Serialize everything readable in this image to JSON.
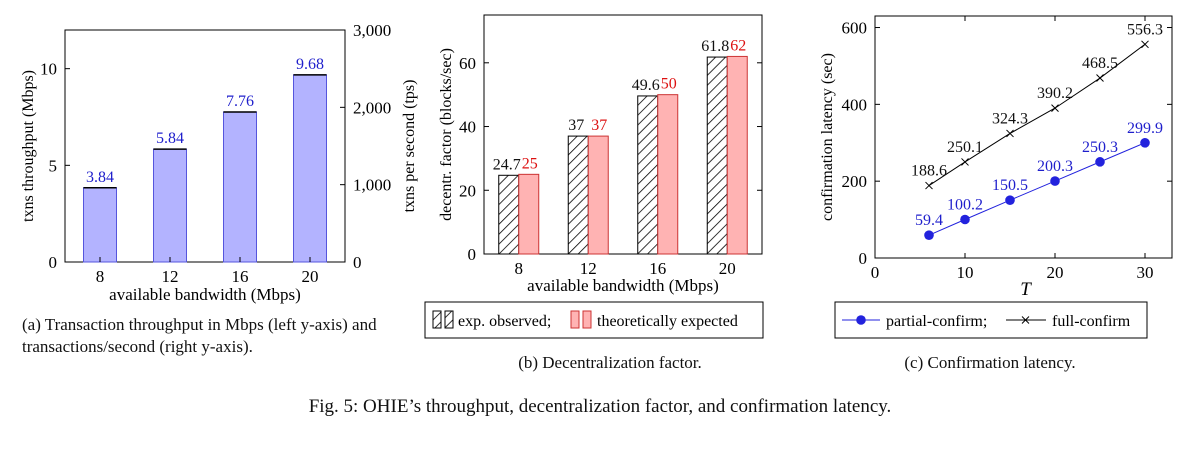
{
  "figure_caption": "Fig. 5: OHIE’s throughput, decentralization factor, and confirmation latency.",
  "colors": {
    "bar_blue_fill": "#b3b3ff",
    "bar_blue_stroke": "#5555dd",
    "label_blue": "#1f1fcc",
    "bar_red_fill": "#ffb3b3",
    "bar_red_stroke": "#cc3333",
    "label_red": "#dd1111",
    "axis": "#000000",
    "line_blue": "#2222dd",
    "line_black": "#000000"
  },
  "chart_data": [
    {
      "id": "a",
      "type": "bar",
      "caption": "(a) Transaction throughput in Mbps (left y-axis) and transactions/second (right y-axis).",
      "categories": [
        "8",
        "12",
        "16",
        "20"
      ],
      "values": [
        3.84,
        5.84,
        7.76,
        9.68
      ],
      "value_labels": [
        "3.84",
        "5.84",
        "7.76",
        "9.68"
      ],
      "xlabel": "available bandwidth (Mbps)",
      "ylabel": "txns throughput (Mbps)",
      "ylim": [
        0,
        12
      ],
      "yticks": [
        0,
        5,
        10
      ],
      "ytick_labels": [
        "0",
        "5",
        "10"
      ],
      "ylabel_right": "txns per second (tps)",
      "ylim_right": [
        0,
        3000
      ],
      "yticks_right": [
        0,
        1000,
        2000,
        3000
      ],
      "ytick_labels_right": [
        "0",
        "1,000",
        "2,000",
        "3,000"
      ]
    },
    {
      "id": "b",
      "type": "bar",
      "caption": "(b) Decentralization factor.",
      "categories": [
        "8",
        "12",
        "16",
        "20"
      ],
      "series": [
        {
          "name": "exp. observed;",
          "values": [
            24.7,
            37,
            49.6,
            61.8
          ],
          "value_labels": [
            "24.7",
            "37",
            "49.6",
            "61.8"
          ],
          "style": "hatched"
        },
        {
          "name": "theoretically expected",
          "values": [
            25,
            37,
            50,
            62
          ],
          "value_labels": [
            "25",
            "37",
            "50",
            "62"
          ],
          "style": "red"
        }
      ],
      "xlabel": "available bandwidth (Mbps)",
      "ylabel": "decentr. factor (blocks/sec)",
      "ylim": [
        0,
        75
      ],
      "yticks": [
        0,
        20,
        40,
        60
      ],
      "ytick_labels": [
        "0",
        "20",
        "40",
        "60"
      ],
      "legend": "bottom"
    },
    {
      "id": "c",
      "type": "line",
      "caption": "(c) Confirmation latency.",
      "series": [
        {
          "name": "partial-confirm;",
          "x": [
            6,
            10,
            15,
            20,
            25,
            30
          ],
          "y": [
            59.4,
            100.2,
            150.5,
            200.3,
            250.3,
            299.9
          ],
          "labels": [
            "59.4",
            "100.2",
            "150.5",
            "200.3",
            "250.3",
            "299.9"
          ],
          "marker": "circle"
        },
        {
          "name": "full-confirm",
          "x": [
            6,
            10,
            15,
            20,
            25,
            30
          ],
          "y": [
            188.6,
            250.1,
            324.3,
            390.2,
            468.5,
            556.3
          ],
          "labels": [
            "188.6",
            "250.1",
            "324.3",
            "390.2",
            "468.5",
            "556.3"
          ],
          "marker": "cross"
        }
      ],
      "xlabel": "T",
      "ylabel": "confirmation latency (sec)",
      "xlim": [
        0,
        33
      ],
      "xticks": [
        0,
        10,
        20,
        30
      ],
      "xtick_labels": [
        "0",
        "10",
        "20",
        "30"
      ],
      "ylim": [
        0,
        630
      ],
      "yticks": [
        0,
        200,
        400,
        600
      ],
      "ytick_labels": [
        "0",
        "200",
        "400",
        "600"
      ],
      "legend": "bottom"
    }
  ]
}
